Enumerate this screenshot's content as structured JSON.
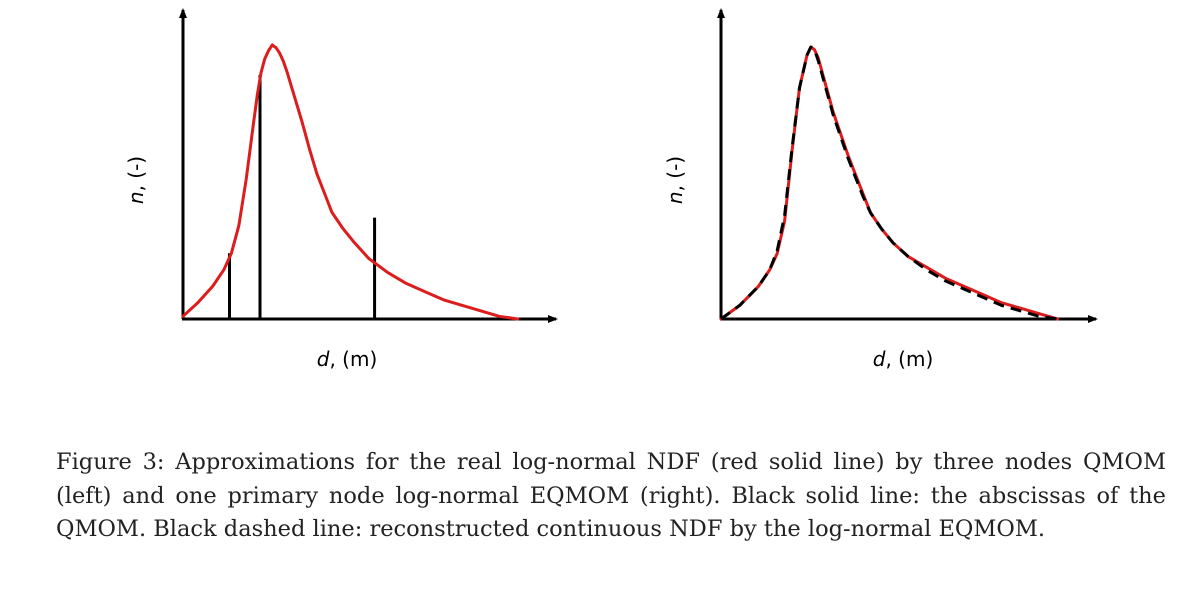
{
  "colors": {
    "ndf": "#dd1c1c",
    "axis": "#000000",
    "nodes": "#000000",
    "reconstructed": "#000000"
  },
  "caption": "Figure 3: Approximations for the real log-normal NDF (red solid line) by three nodes QMOM (left) and one primary node log-normal EQMOM (right). Black solid line: the abscissas of the QMOM. Black dashed line: reconstructed continuous NDF by the log-normal EQMOM.",
  "chart_data": [
    {
      "type": "line",
      "xlabel_italic": "d",
      "xlabel_rest": ", (m)",
      "ylabel_italic": "n",
      "ylabel_rest": ", (-)",
      "xlim": [
        0,
        1
      ],
      "ylim": [
        0,
        1
      ],
      "series": [
        {
          "style": "solid-red",
          "x": [
            0.0,
            0.04,
            0.08,
            0.11,
            0.13,
            0.15,
            0.17,
            0.19,
            0.2,
            0.21,
            0.22,
            0.23,
            0.24,
            0.25,
            0.26,
            0.27,
            0.28,
            0.3,
            0.32,
            0.34,
            0.36,
            0.38,
            0.4,
            0.43,
            0.46,
            0.5,
            0.55,
            0.6,
            0.65,
            0.7,
            0.75,
            0.8,
            0.85,
            0.9
          ],
          "y": [
            0.01,
            0.06,
            0.12,
            0.18,
            0.24,
            0.34,
            0.51,
            0.72,
            0.82,
            0.9,
            0.95,
            0.98,
            1.0,
            0.99,
            0.97,
            0.94,
            0.9,
            0.81,
            0.72,
            0.62,
            0.53,
            0.46,
            0.39,
            0.33,
            0.28,
            0.22,
            0.17,
            0.13,
            0.1,
            0.07,
            0.05,
            0.03,
            0.01,
            0.0
          ]
        }
      ],
      "nodes": [
        {
          "x": 0.125,
          "y": 0.24
        },
        {
          "x": 0.207,
          "y": 0.89
        },
        {
          "x": 0.515,
          "y": 0.37
        }
      ]
    },
    {
      "type": "line",
      "xlabel_italic": "d",
      "xlabel_rest": ", (m)",
      "ylabel_italic": "n",
      "ylabel_rest": ", (-)",
      "xlim": [
        0,
        1
      ],
      "ylim": [
        0,
        1
      ],
      "series": [
        {
          "style": "solid-red",
          "x": [
            0.0,
            0.05,
            0.1,
            0.13,
            0.15,
            0.17,
            0.19,
            0.21,
            0.23,
            0.24,
            0.25,
            0.26,
            0.27,
            0.28,
            0.29,
            0.3,
            0.32,
            0.34,
            0.36,
            0.38,
            0.4,
            0.43,
            0.46,
            0.5,
            0.55,
            0.6,
            0.65,
            0.7,
            0.75,
            0.8,
            0.85,
            0.9
          ],
          "y": [
            0.0,
            0.05,
            0.12,
            0.18,
            0.24,
            0.36,
            0.62,
            0.85,
            0.97,
            1.0,
            0.99,
            0.96,
            0.91,
            0.86,
            0.81,
            0.76,
            0.68,
            0.6,
            0.53,
            0.46,
            0.39,
            0.33,
            0.28,
            0.23,
            0.19,
            0.15,
            0.12,
            0.09,
            0.06,
            0.04,
            0.02,
            0.0
          ]
        },
        {
          "style": "dashed-black",
          "x": [
            0.0,
            0.05,
            0.1,
            0.13,
            0.15,
            0.17,
            0.19,
            0.21,
            0.23,
            0.24,
            0.25,
            0.26,
            0.27,
            0.28,
            0.29,
            0.3,
            0.32,
            0.34,
            0.36,
            0.38,
            0.4,
            0.43,
            0.46,
            0.5,
            0.55,
            0.6,
            0.65,
            0.7,
            0.75,
            0.8,
            0.85,
            0.9
          ],
          "y": [
            0.0,
            0.05,
            0.12,
            0.18,
            0.25,
            0.38,
            0.63,
            0.85,
            0.97,
            1.0,
            0.99,
            0.95,
            0.9,
            0.85,
            0.8,
            0.75,
            0.67,
            0.59,
            0.52,
            0.45,
            0.39,
            0.33,
            0.28,
            0.23,
            0.18,
            0.14,
            0.11,
            0.08,
            0.05,
            0.03,
            0.01,
            0.0
          ]
        }
      ]
    }
  ]
}
